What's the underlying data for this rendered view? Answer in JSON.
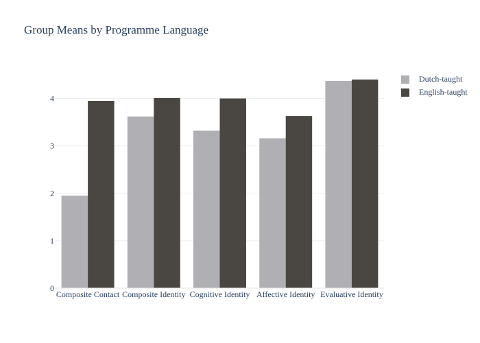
{
  "chart_data": {
    "type": "bar",
    "title": "Group Means by Programme Language",
    "xlabel": "",
    "ylabel": "",
    "categories": [
      "Composite Contact",
      "Composite Identity",
      "Cognitive Identity",
      "Affective Identity",
      "Evaluative Identity"
    ],
    "series": [
      {
        "name": "Dutch-taught",
        "values": [
          1.95,
          3.62,
          3.32,
          3.16,
          4.37
        ],
        "color": "#b0b0b4"
      },
      {
        "name": "English-taught",
        "values": [
          3.95,
          4.01,
          4.0,
          3.63,
          4.4
        ],
        "color": "#4a4641"
      }
    ],
    "ylim": [
      0,
      4.63
    ],
    "yticks": [
      0,
      1,
      2,
      3,
      4
    ],
    "grid": true,
    "legend_position": "top-right"
  }
}
